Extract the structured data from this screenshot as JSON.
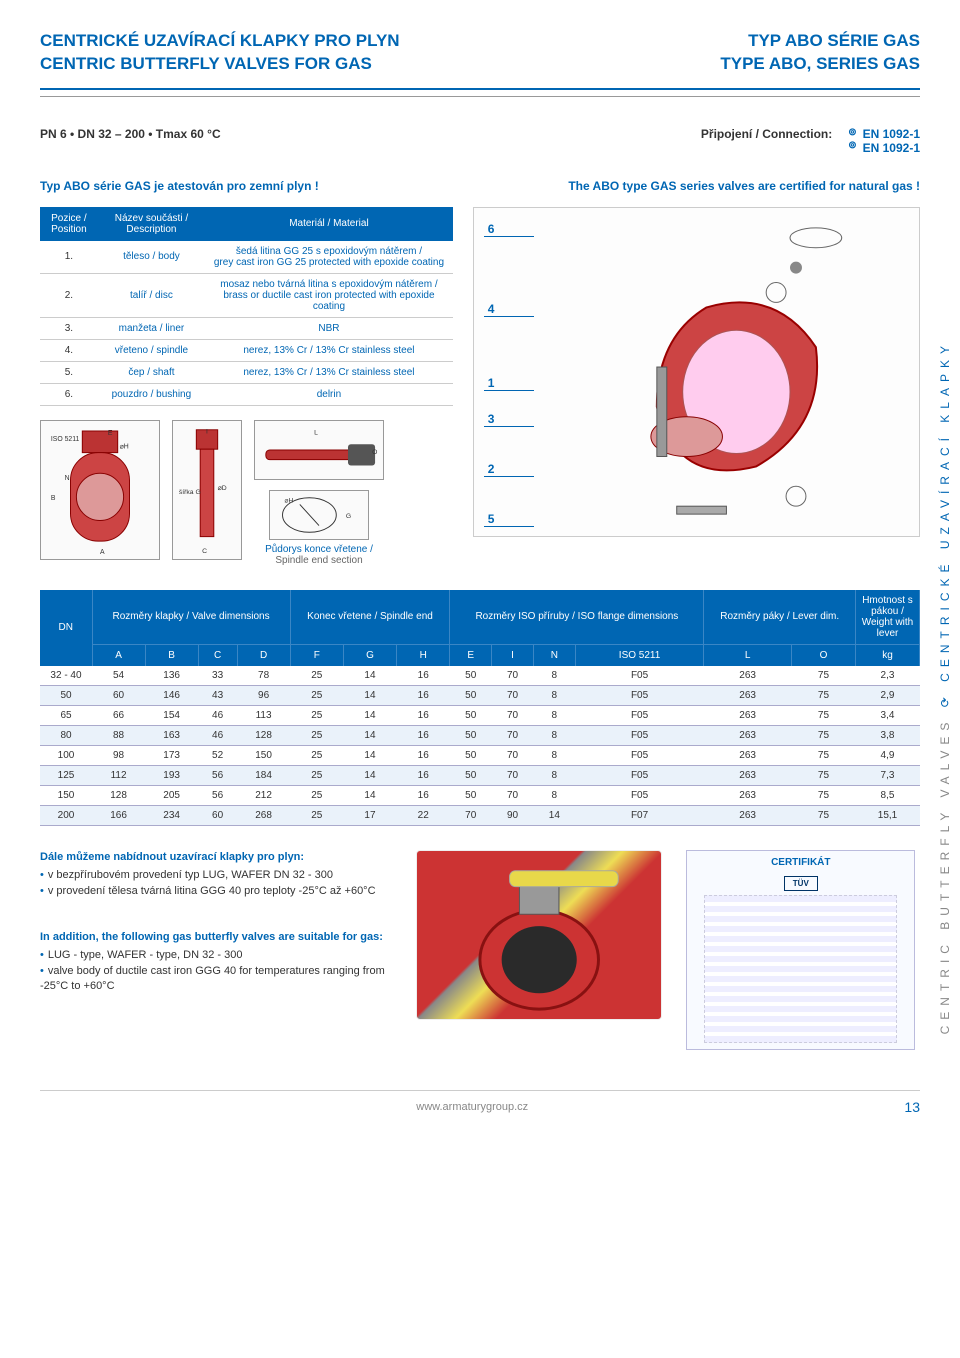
{
  "header": {
    "left_line1": "CENTRICKÉ UZAVÍRACÍ KLAPKY PRO PLYN",
    "left_line2": "CENTRIC BUTTERFLY VALVES FOR GAS",
    "right_line1": "TYP ABO SÉRIE GAS",
    "right_line2": "TYPE ABO, SERIES GAS"
  },
  "spec": {
    "left": "PN 6  •  DN 32 – 200  •  Tmax 60 °C",
    "conn_label": "Připojení / Connection:",
    "conn_1": "EN 1092-1",
    "conn_2": "EN 1092-1"
  },
  "cert": {
    "left": "Typ ABO série GAS je atestován pro zemní plyn !",
    "right": "The ABO type GAS series valves are certified for natural gas !"
  },
  "mat_headers": {
    "pos": "Pozice /\nPosition",
    "name": "Název součásti /\nDescription",
    "mat": "Materiál / Material"
  },
  "materials": [
    {
      "pos": "1.",
      "name": "těleso / body",
      "mat": "šedá litina GG 25 s epoxidovým nátěrem /\ngrey cast iron GG 25 protected with epoxide coating"
    },
    {
      "pos": "2.",
      "name": "talíř / disc",
      "mat": "mosaz nebo tvárná litina s epoxidovým nátěrem /\nbrass or ductile cast iron protected with epoxide coating"
    },
    {
      "pos": "3.",
      "name": "manžeta / liner",
      "mat": "NBR"
    },
    {
      "pos": "4.",
      "name": "vřeteno / spindle",
      "mat": "nerez, 13% Cr / 13% Cr stainless steel"
    },
    {
      "pos": "5.",
      "name": "čep / shaft",
      "mat": "nerez, 13% Cr / 13% Cr stainless steel"
    },
    {
      "pos": "6.",
      "name": "pouzdro / bushing",
      "mat": "delrin"
    }
  ],
  "drawing_labels": {
    "iso": "ISO 5211",
    "sirka": "šířka G",
    "spindle_cz": "Půdorys konce vřetene /",
    "spindle_en": "Spindle end section"
  },
  "callouts": [
    "6",
    "4",
    "1",
    "3",
    "2",
    "5"
  ],
  "dim_table": {
    "dn_header": "DN",
    "group_headers": [
      "Rozměry klapky / Valve dimensions",
      "Konec vřetene / Spindle end",
      "Rozměry ISO příruby / ISO flange dimensions",
      "Rozměry páky / Lever dim.",
      "Hmotnost s pákou / Weight with lever"
    ],
    "sub_headers": [
      "A",
      "B",
      "C",
      "D",
      "F",
      "G",
      "H",
      "E",
      "I",
      "N",
      "ISO 5211",
      "L",
      "O",
      "kg"
    ],
    "rows": [
      [
        "32 - 40",
        "54",
        "136",
        "33",
        "78",
        "25",
        "14",
        "16",
        "50",
        "70",
        "8",
        "F05",
        "263",
        "75",
        "2,3"
      ],
      [
        "50",
        "60",
        "146",
        "43",
        "96",
        "25",
        "14",
        "16",
        "50",
        "70",
        "8",
        "F05",
        "263",
        "75",
        "2,9"
      ],
      [
        "65",
        "66",
        "154",
        "46",
        "113",
        "25",
        "14",
        "16",
        "50",
        "70",
        "8",
        "F05",
        "263",
        "75",
        "3,4"
      ],
      [
        "80",
        "88",
        "163",
        "46",
        "128",
        "25",
        "14",
        "16",
        "50",
        "70",
        "8",
        "F05",
        "263",
        "75",
        "3,8"
      ],
      [
        "100",
        "98",
        "173",
        "52",
        "150",
        "25",
        "14",
        "16",
        "50",
        "70",
        "8",
        "F05",
        "263",
        "75",
        "4,9"
      ],
      [
        "125",
        "112",
        "193",
        "56",
        "184",
        "25",
        "14",
        "16",
        "50",
        "70",
        "8",
        "F05",
        "263",
        "75",
        "7,3"
      ],
      [
        "150",
        "128",
        "205",
        "56",
        "212",
        "25",
        "14",
        "16",
        "50",
        "70",
        "8",
        "F05",
        "263",
        "75",
        "8,5"
      ],
      [
        "200",
        "166",
        "234",
        "60",
        "268",
        "25",
        "17",
        "22",
        "70",
        "90",
        "14",
        "F07",
        "263",
        "75",
        "15,1"
      ]
    ]
  },
  "notes_cz": {
    "head": "Dále můžeme nabídnout uzavírací klapky pro plyn:",
    "items": [
      "v bezpřírubovém provedení typ LUG, WAFER DN 32 - 300",
      "v provedení tělesa tvárná litina GGG 40 pro teploty -25°C až +60°C"
    ]
  },
  "notes_en": {
    "head": "In addition, the following gas butterfly valves are suitable for gas:",
    "items": [
      "LUG - type, WAFER - type, DN 32 - 300",
      "valve body of ductile cast iron GGG 40 for temperatures ranging from -25°C to +60°C"
    ]
  },
  "cert_box": {
    "title": "CERTIFIKÁT",
    "logo": "TÜV"
  },
  "side": {
    "grey": "CENTRIC BUTTERFLY VALVES",
    "blue": "CENTRICKÉ UZAVÍRACÍ KLAPKY"
  },
  "footer": {
    "url": "www.armaturygroup.cz",
    "page": "13"
  },
  "colors": {
    "brand": "#0066b3",
    "row_alt": "#eaf2fa"
  }
}
